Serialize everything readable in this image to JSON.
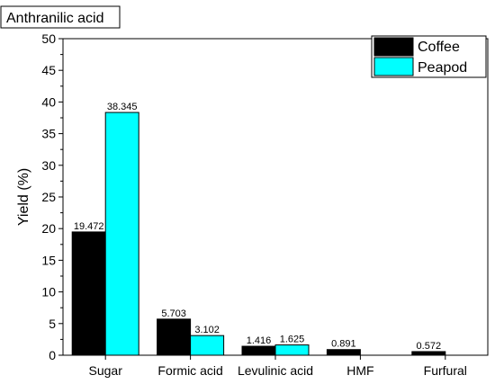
{
  "chart_data": {
    "type": "bar",
    "title": "Anthranilic acid",
    "ylabel": "Yield (%)",
    "xlabel": "",
    "categories": [
      "Sugar",
      "Formic acid",
      "Levulinic acid",
      "HMF",
      "Furfural"
    ],
    "series": [
      {
        "name": "Coffee",
        "color": "#000000",
        "values": [
          19.472,
          5.703,
          1.416,
          0.891,
          0.572
        ],
        "labels": [
          "19.472",
          "5.703",
          "1.416",
          "0.891",
          "0.572"
        ]
      },
      {
        "name": "Peapod",
        "color": "#00FFFF",
        "values": [
          38.345,
          3.102,
          1.625,
          null,
          null
        ],
        "labels": [
          "38.345",
          "3.102",
          "1.625",
          "",
          ""
        ]
      }
    ],
    "ylim": [
      0,
      50
    ],
    "yticks": [
      "0",
      "5",
      "10",
      "15",
      "20",
      "25",
      "30",
      "35",
      "40",
      "45",
      "50"
    ],
    "grid": false,
    "legend_position": "top-right"
  }
}
